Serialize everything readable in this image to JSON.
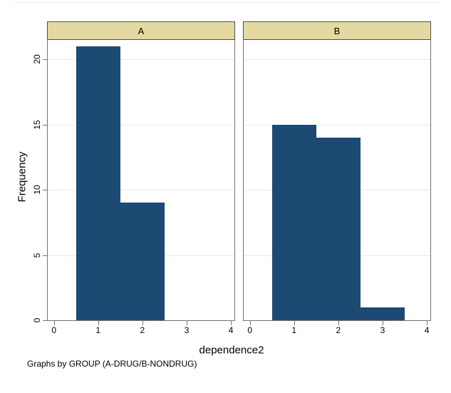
{
  "figure": {
    "ylabel": "Frequency",
    "xlabel": "dependence2",
    "caption": "Graphs by GROUP (A-DRUG/B-NONDRUG)"
  },
  "colors": {
    "bar_fill": "#1c4a72",
    "header_fill": "#e5d9a2",
    "header_border": "#4d4d4d",
    "panel_border": "#737373",
    "gridline": "#e8e8e8",
    "tick": "#737373",
    "text": "#000000"
  },
  "chart_data": {
    "type": "bar",
    "subtype": "histogram-faceted",
    "title": "",
    "xlabel": "dependence2",
    "ylabel": "Frequency",
    "caption": "Graphs by GROUP (A-DRUG/B-NONDRUG)",
    "x_ticks": [
      0,
      1,
      2,
      3,
      4
    ],
    "y_ticks": [
      0,
      5,
      10,
      15,
      20
    ],
    "xlim": [
      -0.14,
      4.08
    ],
    "ylim": [
      0,
      21.5
    ],
    "grid": "horizontal",
    "legend_position": "none",
    "panels": [
      {
        "label": "A",
        "bins": [
          {
            "x0": 0.5,
            "x1": 1.5,
            "count": 21
          },
          {
            "x0": 1.5,
            "x1": 2.5,
            "count": 9
          }
        ]
      },
      {
        "label": "B",
        "bins": [
          {
            "x0": 0.5,
            "x1": 1.5,
            "count": 15
          },
          {
            "x0": 1.5,
            "x1": 2.5,
            "count": 14
          },
          {
            "x0": 2.5,
            "x1": 3.5,
            "count": 1
          }
        ]
      }
    ]
  }
}
